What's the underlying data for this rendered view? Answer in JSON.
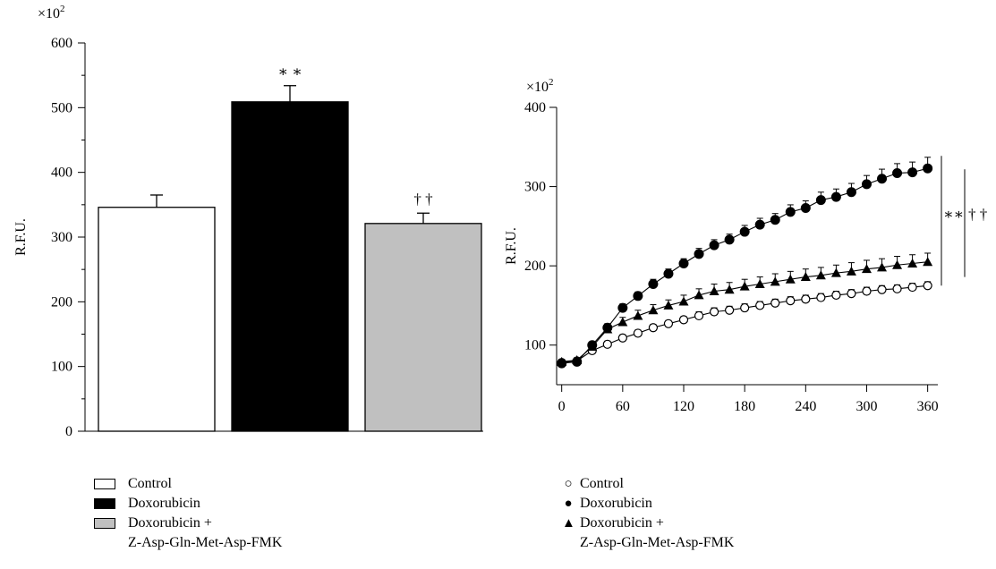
{
  "chart_data": [
    {
      "type": "bar",
      "ylabel": "R.F.U.",
      "multiplier": "×10",
      "multiplier_exp": "2",
      "ylim": [
        0,
        600
      ],
      "yticks": [
        0,
        100,
        200,
        300,
        400,
        500,
        600
      ],
      "yticks_labels": [
        "0",
        "100",
        "200",
        "300",
        "400",
        "500",
        "600"
      ],
      "categories": [
        "Control",
        "Doxorubicin",
        "Doxorubicin + Z-Asp-Gln-Met-Asp-FMK"
      ],
      "values": [
        346,
        509,
        321
      ],
      "errors": [
        19,
        25,
        16
      ],
      "annotations": [
        "",
        "∗ ∗",
        "† †"
      ],
      "colors": [
        "#ffffff",
        "#000000",
        "#c0c0c0"
      ],
      "legend": [
        {
          "label": "Control",
          "color": "#ffffff"
        },
        {
          "label": "Doxorubicin",
          "color": "#000000"
        },
        {
          "label": "Doxorubicin +",
          "label2": "Z-Asp-Gln-Met-Asp-FMK",
          "color": "#c0c0c0"
        }
      ],
      "legend_placement": "bottom"
    },
    {
      "type": "line",
      "ylabel": "R.F.U.",
      "multiplier": "×10",
      "multiplier_exp": "2",
      "xlim": [
        -5,
        370
      ],
      "ylim": [
        50,
        400
      ],
      "xticks": [
        0,
        60,
        120,
        180,
        240,
        300,
        360
      ],
      "xticks_labels": [
        "0",
        "60",
        "120",
        "180",
        "240",
        "300",
        "360"
      ],
      "yticks": [
        100,
        200,
        300,
        400
      ],
      "yticks_labels": [
        "100",
        "200",
        "300",
        "400"
      ],
      "x": [
        0,
        15,
        30,
        45,
        60,
        75,
        90,
        105,
        120,
        135,
        150,
        165,
        180,
        195,
        210,
        225,
        240,
        255,
        270,
        285,
        300,
        315,
        330,
        345,
        360
      ],
      "series": [
        {
          "name": "Control",
          "marker": "open-circle",
          "values": [
            78,
            80,
            93,
            101,
            109,
            115,
            122,
            127,
            132,
            137,
            142,
            144,
            147,
            150,
            153,
            156,
            158,
            160,
            163,
            165,
            168,
            170,
            171,
            173,
            175
          ],
          "errors": [
            3,
            3,
            3,
            4,
            4,
            4,
            4,
            4,
            4,
            5,
            5,
            5,
            5,
            5,
            5,
            5,
            5,
            5,
            5,
            5,
            5,
            5,
            5,
            5,
            5
          ]
        },
        {
          "name": "Doxorubicin",
          "marker": "filled-circle",
          "values": [
            77,
            79,
            100,
            122,
            147,
            162,
            177,
            190,
            203,
            215,
            226,
            233,
            243,
            252,
            258,
            268,
            273,
            283,
            287,
            293,
            303,
            310,
            317,
            318,
            323
          ],
          "errors": [
            3,
            3,
            4,
            5,
            5,
            5,
            6,
            6,
            6,
            7,
            7,
            7,
            8,
            8,
            8,
            9,
            9,
            10,
            10,
            11,
            11,
            12,
            12,
            13,
            14
          ]
        },
        {
          "name": "Doxorubicin + Z-Asp-Gln-Met-Asp-FMK",
          "marker": "filled-triangle",
          "values": [
            79,
            81,
            98,
            120,
            129,
            137,
            144,
            150,
            155,
            163,
            168,
            170,
            174,
            177,
            180,
            183,
            186,
            188,
            191,
            193,
            196,
            198,
            201,
            203,
            205
          ],
          "errors": [
            3,
            3,
            4,
            5,
            6,
            7,
            7,
            7,
            8,
            8,
            9,
            9,
            9,
            9,
            10,
            10,
            10,
            10,
            10,
            11,
            11,
            11,
            11,
            11,
            11
          ]
        }
      ],
      "significance": [
        {
          "text": "∗∗",
          "range": [
            175,
            323
          ]
        },
        {
          "text": "† †",
          "range": [
            195,
            315
          ]
        }
      ],
      "legend": [
        {
          "label": "Control",
          "symbol": "○"
        },
        {
          "label": "Doxorubicin",
          "symbol": "●"
        },
        {
          "label": "Doxorubicin +",
          "label2": "Z-Asp-Gln-Met-Asp-FMK",
          "symbol": "▲"
        }
      ],
      "legend_placement": "bottom"
    }
  ]
}
